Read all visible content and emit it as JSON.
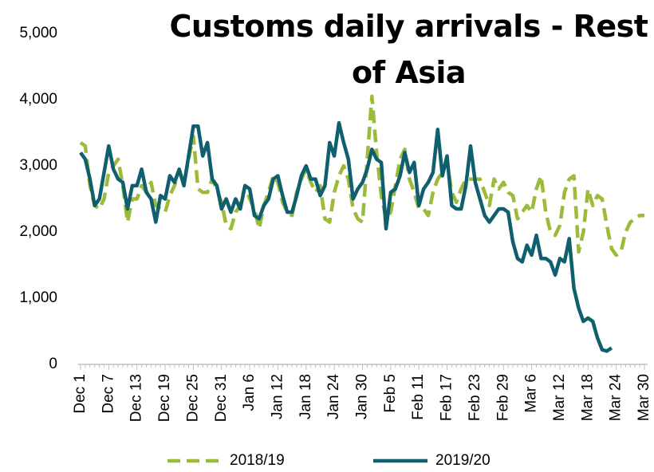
{
  "chart_data": {
    "type": "line",
    "title": "Customs daily arrivals - Rest of Asia",
    "categories": [
      "Dec 1",
      null,
      null,
      null,
      null,
      null,
      "Dec 7",
      null,
      null,
      null,
      null,
      null,
      "Dec 13",
      null,
      null,
      null,
      null,
      null,
      "Dec 19",
      null,
      null,
      null,
      null,
      null,
      "Dec 25",
      null,
      null,
      null,
      null,
      null,
      "Dec 31",
      null,
      null,
      null,
      null,
      null,
      "Jan 6",
      null,
      null,
      null,
      null,
      null,
      "Jan 12",
      null,
      null,
      null,
      null,
      null,
      "Jan 18",
      null,
      null,
      null,
      null,
      null,
      "Jan 24",
      null,
      null,
      null,
      null,
      null,
      "Jan 30",
      null,
      null,
      null,
      null,
      null,
      "Feb 5",
      null,
      null,
      null,
      null,
      null,
      "Feb 11",
      null,
      null,
      null,
      null,
      null,
      "Feb 17",
      null,
      null,
      null,
      null,
      null,
      "Feb 23",
      null,
      null,
      null,
      null,
      null,
      "Feb 29",
      null,
      null,
      null,
      null,
      null,
      "Mar 6",
      null,
      null,
      null,
      null,
      null,
      "Mar 12",
      null,
      null,
      null,
      null,
      null,
      "Mar 18",
      null,
      null,
      null,
      null,
      null,
      "Mar 24",
      null,
      null,
      null,
      null,
      null,
      "Mar 30"
    ],
    "series": [
      {
        "name": "2018/19",
        "color": "#9bbb3b",
        "dashed": true,
        "values": [
          3350,
          3300,
          2700,
          2400,
          2350,
          2500,
          2900,
          3000,
          3100,
          2700,
          2150,
          2500,
          2500,
          2700,
          2600,
          2750,
          2400,
          2350,
          2300,
          2550,
          2700,
          2900,
          2750,
          3100,
          3450,
          2650,
          2600,
          2600,
          2800,
          2650,
          2450,
          2100,
          2050,
          2300,
          2400,
          2700,
          2500,
          2350,
          2050,
          2400,
          2600,
          2850,
          2750,
          2450,
          2300,
          2250,
          2600,
          2800,
          2950,
          2750,
          2600,
          2700,
          2200,
          2150,
          2600,
          2850,
          3000,
          2800,
          2350,
          2200,
          2150,
          3100,
          4050,
          3200,
          2550,
          2200,
          2300,
          2700,
          3100,
          3250,
          2800,
          2600,
          2350,
          2350,
          2250,
          2600,
          2800,
          2900,
          3050,
          2600,
          2450,
          2650,
          2800,
          2800,
          2800,
          2800,
          2600,
          2400,
          2800,
          2650,
          2750,
          2600,
          2550,
          2200,
          2300,
          2400,
          2300,
          2650,
          2850,
          2300,
          2000,
          1950,
          2100,
          2600,
          2800,
          2850,
          1700,
          2000,
          2650,
          2400,
          2550,
          2500,
          2100,
          1750,
          1650,
          1700,
          2000,
          2150,
          2200,
          2250,
          2250
        ]
      },
      {
        "name": "2019/20",
        "color": "#0f5f6e",
        "dashed": false,
        "values": [
          3200,
          3100,
          2800,
          2400,
          2500,
          2900,
          3300,
          2950,
          2800,
          2750,
          2350,
          2700,
          2700,
          2950,
          2600,
          2500,
          2150,
          2550,
          2500,
          2850,
          2750,
          2950,
          2700,
          3150,
          3600,
          3600,
          3150,
          3350,
          2800,
          2700,
          2350,
          2500,
          2300,
          2500,
          2350,
          2700,
          2650,
          2250,
          2200,
          2400,
          2500,
          2800,
          2850,
          2550,
          2300,
          2300,
          2550,
          2850,
          3000,
          2800,
          2800,
          2550,
          2700,
          3350,
          3150,
          3650,
          3350,
          3100,
          2500,
          2650,
          2750,
          2950,
          3250,
          3100,
          3050,
          2050,
          2600,
          2650,
          2850,
          3200,
          2900,
          3050,
          2400,
          2650,
          2750,
          2900,
          3550,
          2850,
          3150,
          2400,
          2350,
          2350,
          2700,
          3300,
          2750,
          2500,
          2250,
          2150,
          2250,
          2350,
          2350,
          2300,
          1850,
          1600,
          1550,
          1800,
          1650,
          1950,
          1600,
          1600,
          1550,
          1350,
          1600,
          1550,
          1900,
          1150,
          850,
          650,
          700,
          650,
          400,
          220,
          200,
          250,
          null,
          null,
          null,
          null,
          null,
          null,
          null
        ]
      }
    ],
    "ylim": [
      0,
      5000
    ],
    "yticks": [
      0,
      {
        "value": 1000,
        "label": "1,000"
      },
      {
        "value": 2000,
        "label": "2,000"
      },
      {
        "value": 3000,
        "label": "3,000"
      },
      {
        "value": 4000,
        "label": "4,000"
      },
      {
        "value": 5000,
        "label": "5,000"
      }
    ],
    "grid": false,
    "legend": "bottom"
  }
}
